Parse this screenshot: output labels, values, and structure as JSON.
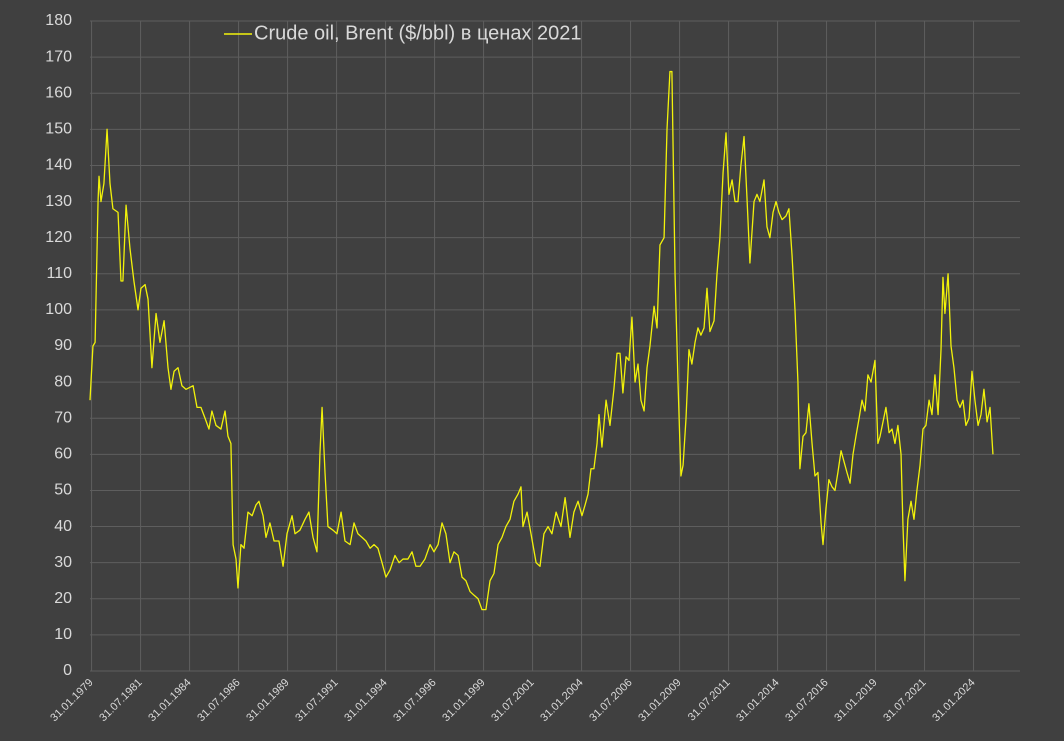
{
  "chart_data": {
    "type": "line",
    "x": [
      1979.0,
      1979.15,
      1979.26,
      1979.41,
      1979.46,
      1979.56,
      1979.71,
      1979.87,
      1980.02,
      1980.17,
      1980.43,
      1980.58,
      1980.68,
      1980.84,
      1981.04,
      1981.24,
      1981.45,
      1981.6,
      1981.81,
      1981.96,
      1982.16,
      1982.37,
      1982.57,
      1982.78,
      1982.98,
      1983.13,
      1983.29,
      1983.49,
      1983.69,
      1983.9,
      1984.26,
      1984.46,
      1984.66,
      1984.87,
      1985.07,
      1985.22,
      1985.43,
      1985.68,
      1985.89,
      1986.04,
      1986.19,
      1986.3,
      1986.45,
      1986.55,
      1986.7,
      1986.86,
      1987.06,
      1987.27,
      1987.47,
      1987.62,
      1987.83,
      1987.98,
      1988.18,
      1988.39,
      1988.64,
      1988.85,
      1989.05,
      1989.31,
      1989.46,
      1989.71,
      1989.97,
      1990.17,
      1990.38,
      1990.58,
      1990.73,
      1990.84,
      1990.99,
      1991.14,
      1991.4,
      1991.6,
      1991.81,
      1992.01,
      1992.27,
      1992.47,
      1992.67,
      1992.88,
      1993.08,
      1993.29,
      1993.49,
      1993.69,
      1993.9,
      1994.1,
      1994.31,
      1994.56,
      1994.77,
      1994.97,
      1995.22,
      1995.43,
      1995.63,
      1995.84,
      1996.09,
      1996.35,
      1996.55,
      1996.76,
      1996.96,
      1997.16,
      1997.37,
      1997.57,
      1997.78,
      1997.98,
      1998.18,
      1998.39,
      1998.59,
      1998.8,
      1999.0,
      1999.2,
      1999.41,
      1999.61,
      1999.82,
      2000.02,
      2000.22,
      2000.43,
      2000.63,
      2000.84,
      2000.99,
      2001.09,
      2001.3,
      2001.5,
      2001.76,
      2001.96,
      2002.16,
      2002.37,
      2002.57,
      2002.78,
      2003.03,
      2003.24,
      2003.49,
      2003.69,
      2003.9,
      2004.1,
      2004.26,
      2004.41,
      2004.56,
      2004.71,
      2004.87,
      2004.97,
      2005.12,
      2005.33,
      2005.53,
      2005.73,
      2005.89,
      2006.04,
      2006.19,
      2006.35,
      2006.5,
      2006.65,
      2006.81,
      2006.96,
      2007.11,
      2007.27,
      2007.42,
      2007.57,
      2007.78,
      2007.93,
      2008.08,
      2008.29,
      2008.44,
      2008.59,
      2008.69,
      2008.85,
      2009.0,
      2009.15,
      2009.26,
      2009.41,
      2009.56,
      2009.71,
      2009.87,
      2010.02,
      2010.17,
      2010.33,
      2010.48,
      2010.63,
      2010.84,
      2010.99,
      2011.14,
      2011.3,
      2011.45,
      2011.6,
      2011.76,
      2011.91,
      2012.06,
      2012.21,
      2012.37,
      2012.52,
      2012.67,
      2012.88,
      2013.03,
      2013.18,
      2013.39,
      2013.54,
      2013.69,
      2013.85,
      2014.0,
      2014.15,
      2014.31,
      2014.51,
      2014.66,
      2014.82,
      2014.97,
      2015.12,
      2015.22,
      2015.38,
      2015.53,
      2015.68,
      2015.84,
      2015.99,
      2016.14,
      2016.3,
      2016.4,
      2016.55,
      2016.7,
      2016.86,
      2017.01,
      2017.16,
      2017.32,
      2017.47,
      2017.62,
      2017.78,
      2017.93,
      2018.08,
      2018.24,
      2018.39,
      2018.54,
      2018.69,
      2018.85,
      2019.05,
      2019.2,
      2019.31,
      2019.46,
      2019.61,
      2019.77,
      2019.92,
      2020.07,
      2020.22,
      2020.38,
      2020.48,
      2020.58,
      2020.73,
      2020.89,
      2021.04,
      2021.19,
      2021.35,
      2021.5,
      2021.65,
      2021.81,
      2021.96,
      2022.11,
      2022.27,
      2022.42,
      2022.52,
      2022.62,
      2022.78,
      2022.93,
      2023.08,
      2023.24,
      2023.39,
      2023.54,
      2023.69,
      2023.85,
      2024.0,
      2024.15,
      2024.31,
      2024.46,
      2024.61,
      2024.77,
      2024.92,
      2025.07
    ],
    "series": [
      {
        "name": "Crude oil, Brent ($/bbl) в ценах 2021",
        "color": "#f2f20a",
        "values": [
          75,
          90,
          91,
          130,
          137,
          130,
          135,
          150,
          135,
          128,
          127,
          108,
          108,
          129,
          117,
          108,
          100,
          106,
          107,
          103,
          84,
          99,
          91,
          97,
          84,
          78,
          83,
          84,
          79,
          78,
          79,
          73,
          73,
          70,
          67,
          72,
          68,
          67,
          72,
          65,
          63,
          35,
          31,
          23,
          35,
          34,
          44,
          43,
          46,
          47,
          43,
          37,
          41,
          36,
          36,
          29,
          38,
          43,
          38,
          39,
          42,
          44,
          37,
          33,
          60,
          73,
          55,
          40,
          39,
          38,
          44,
          36,
          35,
          41,
          38,
          37,
          36,
          34,
          35,
          34,
          30,
          26,
          28,
          32,
          30,
          31,
          31,
          33,
          29,
          29,
          31,
          35,
          33,
          35,
          41,
          38,
          30,
          33,
          32,
          26,
          25,
          22,
          21,
          20,
          17,
          17,
          25,
          27,
          35,
          37,
          40,
          42,
          47,
          49,
          51,
          40,
          44,
          38,
          30,
          29,
          38,
          40,
          38,
          44,
          40,
          48,
          37,
          44,
          47,
          43,
          46,
          49,
          56,
          56,
          63,
          71,
          62,
          75,
          68,
          78,
          88,
          88,
          77,
          87,
          86,
          98,
          80,
          85,
          75,
          72,
          84,
          90,
          101,
          95,
          118,
          120,
          150,
          166,
          166,
          110,
          80,
          54,
          57,
          70,
          89,
          85,
          91,
          95,
          93,
          95,
          106,
          94,
          97,
          110,
          120,
          138,
          149,
          132,
          136,
          130,
          130,
          140,
          148,
          131,
          113,
          130,
          132,
          130,
          136,
          123,
          120,
          127,
          130,
          127,
          125,
          126,
          128,
          115,
          100,
          80,
          56,
          65,
          66,
          74,
          63,
          54,
          55,
          41,
          35,
          45,
          53,
          51,
          50,
          55,
          61,
          58,
          55,
          52,
          60,
          65,
          70,
          75,
          72,
          82,
          80,
          86,
          63,
          65,
          69,
          73,
          66,
          67,
          63,
          68,
          60,
          40,
          25,
          42,
          47,
          42,
          50,
          57,
          67,
          68,
          75,
          71,
          82,
          71,
          89,
          109,
          99,
          110,
          90,
          84,
          75,
          73,
          75,
          68,
          70,
          83,
          75,
          68,
          71,
          78,
          69,
          73,
          60
        ]
      }
    ],
    "xlim": [
      1979,
      2026.45
    ],
    "xticks": [
      {
        "value": 1979.08,
        "label": "31.01.1979"
      },
      {
        "value": 1981.58,
        "label": "31.07.1981"
      },
      {
        "value": 1984.08,
        "label": "31.01.1984"
      },
      {
        "value": 1986.58,
        "label": "31.07.1986"
      },
      {
        "value": 1989.08,
        "label": "31.01.1989"
      },
      {
        "value": 1991.58,
        "label": "31.07.1991"
      },
      {
        "value": 1994.08,
        "label": "31.01.1994"
      },
      {
        "value": 1996.58,
        "label": "31.07.1996"
      },
      {
        "value": 1999.08,
        "label": "31.01.1999"
      },
      {
        "value": 2001.58,
        "label": "31.07.2001"
      },
      {
        "value": 2004.08,
        "label": "31.01.2004"
      },
      {
        "value": 2006.58,
        "label": "31.07.2006"
      },
      {
        "value": 2009.08,
        "label": "31.01.2009"
      },
      {
        "value": 2011.58,
        "label": "31.07.2011"
      },
      {
        "value": 2014.08,
        "label": "31.01.2014"
      },
      {
        "value": 2016.58,
        "label": "31.07.2016"
      },
      {
        "value": 2019.08,
        "label": "31.01.2019"
      },
      {
        "value": 2021.58,
        "label": "31.07.2021"
      },
      {
        "value": 2024.08,
        "label": "31.01.2024"
      }
    ],
    "ylim": [
      0,
      180
    ],
    "yticks": [
      0,
      10,
      20,
      30,
      40,
      50,
      60,
      70,
      80,
      90,
      100,
      110,
      120,
      130,
      140,
      150,
      160,
      170,
      180
    ],
    "grid": true
  }
}
